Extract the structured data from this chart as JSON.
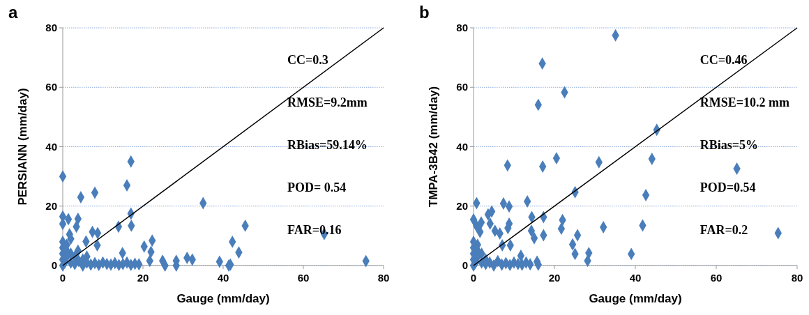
{
  "chart_data": [
    {
      "type": "scatter",
      "title": "a",
      "xlabel": "Gauge (mm/day)",
      "ylabel": "PERSIANN (mm/day)",
      "xlim": [
        0,
        80
      ],
      "ylim": [
        0,
        80
      ],
      "xticks": [
        0,
        20,
        40,
        60,
        80
      ],
      "yticks": [
        0,
        20,
        40,
        60,
        80
      ],
      "grid": "y",
      "annotations": [
        "CC=0.3",
        "RMSE=9.2mm",
        "RBias=59.14%",
        "POD= 0.54",
        "FAR=0.16"
      ],
      "series": [
        {
          "marker": "diamond",
          "color": "#4a7ebb",
          "x": [
            0,
            17,
            16,
            8,
            4.5,
            35,
            17,
            0,
            1.4,
            3.8,
            0,
            3.4,
            13.9,
            17.1,
            7.4,
            8.7,
            1.7,
            5.8,
            8.6,
            22.3,
            20.3,
            22,
            14.9,
            3.8,
            21.7,
            24.9,
            25.5,
            28.3,
            28.3,
            31,
            32.3,
            39.1,
            41.4,
            45.5,
            42.3,
            43.9,
            41.8,
            65.2,
            75.6,
            0,
            0,
            0,
            0,
            0,
            0.5,
            1,
            1,
            1,
            2,
            2,
            2,
            3,
            3,
            4,
            5,
            5,
            6,
            6,
            7,
            8,
            9,
            10,
            11,
            12,
            13,
            14,
            15,
            16,
            17,
            18,
            19
          ],
          "values": [
            30,
            35,
            27,
            24.5,
            23,
            21,
            17.5,
            16.5,
            15.6,
            15.7,
            14,
            13.1,
            13.1,
            13.4,
            11.3,
            10.9,
            10.5,
            8.1,
            6.8,
            8.4,
            6.4,
            4.6,
            4.2,
            5,
            1.6,
            1.6,
            0,
            1.6,
            0,
            2.6,
            2,
            1.3,
            0,
            13.4,
            8,
            4.4,
            0.3,
            10.6,
            1.5,
            0,
            2,
            4,
            6,
            8,
            1,
            3,
            5,
            7,
            1,
            4,
            9,
            0.5,
            3,
            1.5,
            0,
            2,
            1,
            3,
            0.3,
            0.8,
            0.2,
            1,
            0.5,
            0.3,
            0.8,
            0.2,
            0.5,
            1,
            0.2,
            0.6,
            0.4
          ]
        },
        {
          "type": "line",
          "color": "#000000",
          "x": [
            0,
            80
          ],
          "values": [
            0,
            80
          ]
        }
      ]
    },
    {
      "type": "scatter",
      "title": "b",
      "xlabel": "Gauge (mm/day)",
      "ylabel": "TMPA-3B42 (mm/day)",
      "xlim": [
        0,
        80
      ],
      "ylim": [
        0,
        80
      ],
      "xticks": [
        0,
        20,
        40,
        60,
        80
      ],
      "yticks": [
        0,
        20,
        40,
        60,
        80
      ],
      "grid": "y",
      "annotations": [
        "CC=0.46",
        "RMSE=10.2 mm",
        "RBias=5%",
        "POD=0.54",
        "FAR=0.2"
      ],
      "series": [
        {
          "marker": "diamond",
          "color": "#4a7ebb",
          "x": [
            35.1,
            17,
            22.5,
            16,
            45.3,
            20.5,
            44.1,
            8.4,
            17.1,
            31,
            65.1,
            25.1,
            42.6,
            0.75,
            7.4,
            8.8,
            13.3,
            4.5,
            3.6,
            14.4,
            17.3,
            22,
            0,
            1.9,
            0.75,
            8.8,
            8.5,
            4.1,
            14.3,
            21.7,
            5.3,
            6.5,
            1.6,
            15,
            17.3,
            25.7,
            24.5,
            25.1,
            28.5,
            28.2,
            7.1,
            9.1,
            11.7,
            15.7,
            32.1,
            41.8,
            39,
            75.3,
            0,
            0,
            0,
            0,
            0,
            0.5,
            1,
            1,
            1,
            2,
            2,
            3,
            3,
            4,
            5,
            6,
            7,
            8,
            9,
            10,
            11,
            12,
            13,
            14,
            16
          ],
          "values": [
            77.5,
            68,
            58.3,
            54.1,
            45.7,
            36.1,
            35.9,
            33.7,
            33.3,
            34.8,
            32.6,
            24.7,
            23.7,
            21,
            20.9,
            19.9,
            21.6,
            18.2,
            17.2,
            16.3,
            16.3,
            15.3,
            15.5,
            14.5,
            13.3,
            14.1,
            12.6,
            14.1,
            11.7,
            12.4,
            11.7,
            10.8,
            11.3,
            9.2,
            10.2,
            10.2,
            7.1,
            3.9,
            4.2,
            1.6,
            6.8,
            6.8,
            3.3,
            1.3,
            12.9,
            13.5,
            3.9,
            10.9,
            0,
            2,
            4,
            6,
            8,
            1,
            3,
            5,
            7,
            1,
            4,
            0.5,
            2,
            1,
            0,
            1.5,
            0.3,
            0.8,
            0.2,
            1,
            0.5,
            0.3,
            1,
            0.4,
            0.3
          ]
        },
        {
          "type": "line",
          "color": "#000000",
          "x": [
            0,
            80
          ],
          "values": [
            0,
            80
          ]
        }
      ]
    }
  ]
}
